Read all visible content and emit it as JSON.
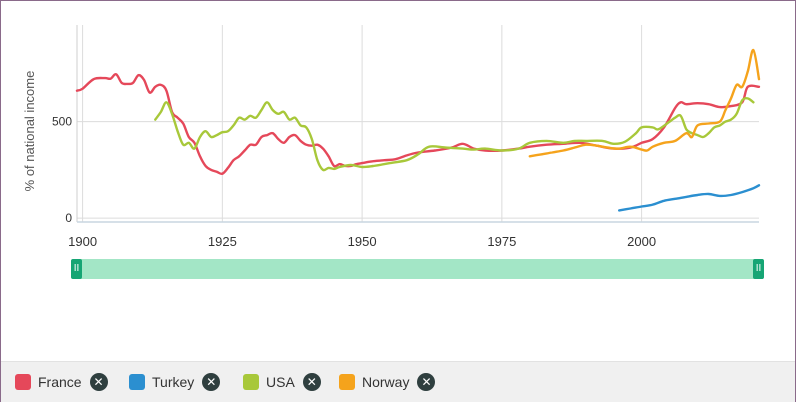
{
  "chart_data": {
    "type": "line",
    "ylabel": "% of national income",
    "x_ticks": [
      1900,
      1925,
      1950,
      1975,
      2000
    ],
    "y_ticks": [
      0,
      500
    ],
    "xlim": [
      1899,
      2021
    ],
    "ylim": [
      -20,
      1000
    ],
    "grid": true,
    "series": [
      {
        "name": "France",
        "color": "#e5485a",
        "points": [
          [
            1899,
            660
          ],
          [
            1900,
            670
          ],
          [
            1902,
            720
          ],
          [
            1904,
            725
          ],
          [
            1905,
            722
          ],
          [
            1906,
            745
          ],
          [
            1907,
            700
          ],
          [
            1908,
            695
          ],
          [
            1909,
            700
          ],
          [
            1910,
            740
          ],
          [
            1911,
            715
          ],
          [
            1912,
            650
          ],
          [
            1913,
            680
          ],
          [
            1914,
            690
          ],
          [
            1915,
            660
          ],
          [
            1916,
            550
          ],
          [
            1917,
            520
          ],
          [
            1918,
            490
          ],
          [
            1919,
            420
          ],
          [
            1920,
            390
          ],
          [
            1921,
            320
          ],
          [
            1922,
            270
          ],
          [
            1923,
            250
          ],
          [
            1924,
            240
          ],
          [
            1925,
            230
          ],
          [
            1926,
            260
          ],
          [
            1927,
            300
          ],
          [
            1928,
            320
          ],
          [
            1929,
            350
          ],
          [
            1930,
            380
          ],
          [
            1931,
            380
          ],
          [
            1932,
            420
          ],
          [
            1933,
            430
          ],
          [
            1934,
            440
          ],
          [
            1935,
            410
          ],
          [
            1936,
            390
          ],
          [
            1937,
            420
          ],
          [
            1938,
            430
          ],
          [
            1939,
            400
          ],
          [
            1940,
            380
          ],
          [
            1941,
            375
          ],
          [
            1942,
            380
          ],
          [
            1943,
            360
          ],
          [
            1944,
            320
          ],
          [
            1945,
            270
          ],
          [
            1946,
            280
          ],
          [
            1947,
            270
          ],
          [
            1948,
            270
          ],
          [
            1949,
            280
          ],
          [
            1950,
            285
          ],
          [
            1952,
            295
          ],
          [
            1954,
            300
          ],
          [
            1956,
            305
          ],
          [
            1958,
            325
          ],
          [
            1960,
            340
          ],
          [
            1963,
            350
          ],
          [
            1966,
            365
          ],
          [
            1968,
            385
          ],
          [
            1970,
            360
          ],
          [
            1972,
            350
          ],
          [
            1975,
            350
          ],
          [
            1978,
            360
          ],
          [
            1980,
            370
          ],
          [
            1983,
            380
          ],
          [
            1986,
            385
          ],
          [
            1989,
            390
          ],
          [
            1992,
            375
          ],
          [
            1995,
            360
          ],
          [
            1998,
            365
          ],
          [
            2000,
            390
          ],
          [
            2002,
            410
          ],
          [
            2004,
            470
          ],
          [
            2006,
            570
          ],
          [
            2007,
            600
          ],
          [
            2008,
            590
          ],
          [
            2010,
            595
          ],
          [
            2012,
            590
          ],
          [
            2014,
            575
          ],
          [
            2016,
            580
          ],
          [
            2018,
            600
          ],
          [
            2019,
            680
          ],
          [
            2021,
            680
          ]
        ]
      },
      {
        "name": "Turkey",
        "color": "#2b8fd0",
        "points": [
          [
            1996,
            40
          ],
          [
            1998,
            50
          ],
          [
            2000,
            60
          ],
          [
            2002,
            70
          ],
          [
            2004,
            90
          ],
          [
            2006,
            100
          ],
          [
            2008,
            110
          ],
          [
            2010,
            120
          ],
          [
            2012,
            125
          ],
          [
            2014,
            115
          ],
          [
            2016,
            120
          ],
          [
            2018,
            135
          ],
          [
            2020,
            155
          ],
          [
            2021,
            170
          ]
        ]
      },
      {
        "name": "USA",
        "color": "#a8c83a",
        "points": [
          [
            1913,
            510
          ],
          [
            1914,
            550
          ],
          [
            1915,
            600
          ],
          [
            1916,
            540
          ],
          [
            1917,
            450
          ],
          [
            1918,
            380
          ],
          [
            1919,
            390
          ],
          [
            1920,
            360
          ],
          [
            1921,
            420
          ],
          [
            1922,
            450
          ],
          [
            1923,
            420
          ],
          [
            1924,
            430
          ],
          [
            1925,
            445
          ],
          [
            1926,
            450
          ],
          [
            1927,
            480
          ],
          [
            1928,
            520
          ],
          [
            1929,
            510
          ],
          [
            1930,
            530
          ],
          [
            1931,
            520
          ],
          [
            1932,
            560
          ],
          [
            1933,
            600
          ],
          [
            1934,
            560
          ],
          [
            1935,
            540
          ],
          [
            1936,
            550
          ],
          [
            1937,
            510
          ],
          [
            1938,
            520
          ],
          [
            1939,
            480
          ],
          [
            1940,
            470
          ],
          [
            1941,
            410
          ],
          [
            1942,
            300
          ],
          [
            1943,
            250
          ],
          [
            1944,
            260
          ],
          [
            1945,
            255
          ],
          [
            1946,
            265
          ],
          [
            1948,
            275
          ],
          [
            1950,
            265
          ],
          [
            1952,
            270
          ],
          [
            1955,
            285
          ],
          [
            1958,
            300
          ],
          [
            1960,
            330
          ],
          [
            1962,
            370
          ],
          [
            1965,
            365
          ],
          [
            1968,
            360
          ],
          [
            1970,
            355
          ],
          [
            1972,
            360
          ],
          [
            1975,
            350
          ],
          [
            1978,
            360
          ],
          [
            1980,
            390
          ],
          [
            1983,
            400
          ],
          [
            1986,
            390
          ],
          [
            1988,
            400
          ],
          [
            1990,
            400
          ],
          [
            1993,
            400
          ],
          [
            1995,
            385
          ],
          [
            1997,
            395
          ],
          [
            1999,
            440
          ],
          [
            2000,
            470
          ],
          [
            2002,
            470
          ],
          [
            2003,
            460
          ],
          [
            2005,
            500
          ],
          [
            2006,
            520
          ],
          [
            2007,
            530
          ],
          [
            2008,
            460
          ],
          [
            2009,
            440
          ],
          [
            2010,
            430
          ],
          [
            2011,
            420
          ],
          [
            2012,
            440
          ],
          [
            2013,
            470
          ],
          [
            2014,
            480
          ],
          [
            2015,
            500
          ],
          [
            2016,
            510
          ],
          [
            2017,
            540
          ],
          [
            2018,
            610
          ],
          [
            2019,
            620
          ],
          [
            2020,
            600
          ]
        ]
      },
      {
        "name": "Norway",
        "color": "#f5a31c",
        "points": [
          [
            1980,
            320
          ],
          [
            1982,
            330
          ],
          [
            1984,
            340
          ],
          [
            1986,
            350
          ],
          [
            1988,
            365
          ],
          [
            1990,
            380
          ],
          [
            1992,
            375
          ],
          [
            1994,
            365
          ],
          [
            1996,
            360
          ],
          [
            1998,
            370
          ],
          [
            2000,
            355
          ],
          [
            2001,
            350
          ],
          [
            2002,
            370
          ],
          [
            2004,
            390
          ],
          [
            2006,
            400
          ],
          [
            2008,
            440
          ],
          [
            2009,
            420
          ],
          [
            2010,
            480
          ],
          [
            2012,
            490
          ],
          [
            2014,
            500
          ],
          [
            2015,
            560
          ],
          [
            2016,
            620
          ],
          [
            2017,
            690
          ],
          [
            2018,
            680
          ],
          [
            2019,
            760
          ],
          [
            2020,
            870
          ],
          [
            2021,
            720
          ]
        ]
      }
    ]
  },
  "legend": {
    "items": [
      {
        "label": "France",
        "color": "#e5485a",
        "remove_glyph": "✕"
      },
      {
        "label": "Turkey",
        "color": "#2b8fd0",
        "remove_glyph": "✕"
      },
      {
        "label": "USA",
        "color": "#a8c83a",
        "remove_glyph": "✕"
      },
      {
        "label": "Norway",
        "color": "#f5a31c",
        "remove_glyph": "✕"
      }
    ]
  },
  "range_slider": {
    "handle_glyph": "II"
  }
}
